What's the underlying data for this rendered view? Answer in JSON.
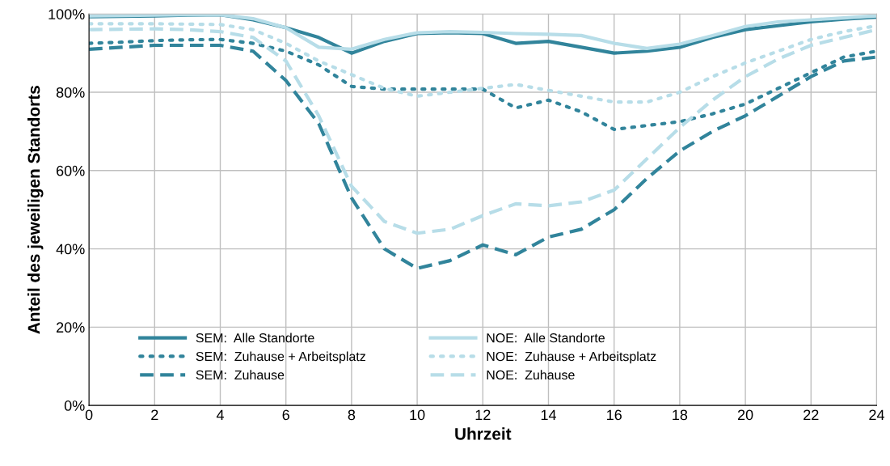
{
  "chart_data": {
    "type": "line",
    "xlabel": "Uhrzeit",
    "ylabel": "Anteil des jeweiligen Standorts",
    "x": [
      0,
      1,
      2,
      3,
      4,
      5,
      6,
      7,
      8,
      9,
      10,
      11,
      12,
      13,
      14,
      15,
      16,
      17,
      18,
      19,
      20,
      21,
      22,
      23,
      24
    ],
    "xlim": [
      0,
      24
    ],
    "xticks": [
      0,
      2,
      4,
      6,
      8,
      10,
      12,
      14,
      16,
      18,
      20,
      22,
      24
    ],
    "ylim": [
      0,
      100
    ],
    "yticks": [
      {
        "value": 0,
        "label": "0%"
      },
      {
        "value": 20,
        "label": "20%"
      },
      {
        "value": 40,
        "label": "40%"
      },
      {
        "value": 60,
        "label": "60%"
      },
      {
        "value": 80,
        "label": "80%"
      },
      {
        "value": 100,
        "label": "100%"
      }
    ],
    "grid": true,
    "legend": "bottom left",
    "marker": "none",
    "series": [
      {
        "name": "SEM:  Alle Standorte",
        "color": "#31849b",
        "line_style": "solid",
        "values": [
          99.3,
          99.4,
          99.5,
          99.7,
          99.8,
          98.5,
          96.5,
          94,
          90,
          93,
          95,
          95.2,
          95,
          92.5,
          93,
          91.5,
          90,
          90.5,
          91.5,
          94,
          96,
          97,
          98,
          98.7,
          99.2
        ]
      },
      {
        "name": "SEM:  Zuhause + Arbeitsplatz",
        "color": "#31849b",
        "line_style": "dotted",
        "values": [
          92.5,
          92.8,
          93.2,
          93.4,
          93.5,
          92.5,
          90.5,
          87,
          81.5,
          80.8,
          80.8,
          80.8,
          80.8,
          76,
          78,
          75,
          70.5,
          71.5,
          72.5,
          74.5,
          77,
          81,
          85,
          89,
          90.5
        ]
      },
      {
        "name": "SEM:  Zuhause",
        "color": "#31849b",
        "line_style": "dashed",
        "values": [
          91,
          91.5,
          92,
          92,
          92,
          90.5,
          83,
          72,
          53,
          40,
          35,
          37,
          41,
          38.5,
          43,
          45,
          50,
          58,
          65,
          70,
          74,
          79,
          84,
          88,
          89
        ]
      },
      {
        "name": "NOE:  Alle Standorte",
        "color": "#b7dde8",
        "line_style": "solid",
        "values": [
          99.5,
          99.6,
          99.7,
          99.8,
          99.8,
          98.8,
          96.5,
          91.5,
          91,
          93.5,
          95.2,
          95.5,
          95.3,
          95,
          94.8,
          94.5,
          92.5,
          91.2,
          92.3,
          94.5,
          96.8,
          98,
          98.5,
          99,
          99.5
        ]
      },
      {
        "name": "NOE:  Zuhause + Arbeitsplatz",
        "color": "#b7dde8",
        "line_style": "dotted",
        "values": [
          97.5,
          97.5,
          97.5,
          97.4,
          97.3,
          96,
          92.5,
          88,
          84.5,
          81,
          79,
          80,
          81,
          82,
          80.5,
          79,
          77.5,
          77.5,
          80,
          84,
          87.5,
          90.5,
          93.5,
          95.5,
          97
        ]
      },
      {
        "name": "NOE:  Zuhause",
        "color": "#b7dde8",
        "line_style": "dashed",
        "values": [
          96,
          96.1,
          96.2,
          96,
          95.5,
          94,
          88,
          74,
          56,
          47,
          44,
          45,
          48.5,
          51.5,
          51,
          52,
          55,
          63,
          71,
          78,
          84,
          88.5,
          92,
          94,
          96
        ]
      }
    ]
  }
}
